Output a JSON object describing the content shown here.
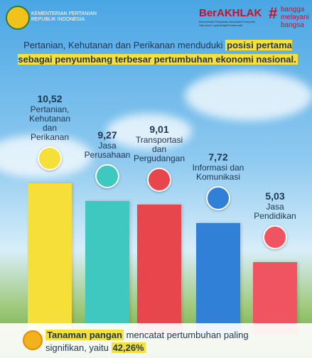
{
  "header": {
    "ministry": "KEMENTERIAN PERTANIAN",
    "country": "REPUBLIK INDONESIA",
    "brand": "BerAKHLAK",
    "brand_tagline": "Berorientasi Pelayanan Akuntabel Kompeten Harmonis Loyal Adaptif Kolaboratif",
    "slogan": [
      "bangga",
      "melayani",
      "bangsa"
    ]
  },
  "chart_data": {
    "type": "bar",
    "title": "Pertanian, Kehutanan dan Perikanan menduduki",
    "title_highlight": "posisi pertama sebagai penyumbang terbesar pertumbuhan ekonomi nasional.",
    "categories": [
      "Pertanian, Kehutanan dan Perikanan",
      "Jasa Perusahaan",
      "Transportasi dan Pergudangan",
      "Informasi dan Komunikasi",
      "Jasa Pendidikan"
    ],
    "values": [
      10.52,
      9.27,
      9.01,
      7.72,
      5.03
    ],
    "value_labels": [
      "10,52",
      "9,27",
      "9,01",
      "7,72",
      "5,03"
    ],
    "colors": [
      "#f7df3a",
      "#3ec8c0",
      "#e6464c",
      "#2f80d6",
      "#ef5460"
    ]
  },
  "footer": {
    "highlight": "Tanaman pangan",
    "text": "mencatat pertumbuhan paling signifikan, yaitu",
    "figure": "42,26%"
  }
}
